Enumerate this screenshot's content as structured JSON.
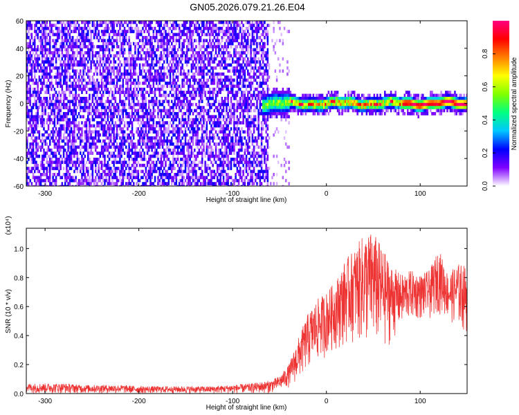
{
  "title": "GN05.2026.079.21.26.E04",
  "colorbar": {
    "label": "Normalized spectral amplitude",
    "ticks": [
      "0.0",
      "0.2",
      "0.4",
      "0.6",
      "0.8"
    ],
    "tick_values": [
      0.0,
      0.2,
      0.4,
      0.6,
      0.8
    ],
    "range": [
      0,
      1
    ],
    "gradient": [
      "#ffffff",
      "#8000ff",
      "#0000ff",
      "#00c8ff",
      "#00ff80",
      "#80ff00",
      "#ffff00",
      "#ff8000",
      "#ff0000",
      "#ff0080"
    ]
  },
  "chart_data": [
    {
      "type": "heatmap",
      "xlabel": "Height of straight line (km)",
      "ylabel": "Frequency (Hz)",
      "xlim": [
        -320,
        150
      ],
      "ylim": [
        -60,
        60
      ],
      "x_ticks": [
        -300,
        -200,
        -100,
        0,
        100
      ],
      "x_tick_labels": [
        "-300",
        "-200",
        "-100",
        "0",
        "100"
      ],
      "y_ticks": [
        -60,
        -40,
        -20,
        0,
        20,
        40,
        60
      ],
      "y_tick_labels": [
        "-60",
        "-40",
        "-20",
        "0",
        "20",
        "40",
        "60"
      ],
      "noise_region": {
        "x_range": [
          -320,
          -62
        ],
        "sparse_extension_to": -40,
        "amplitude": 0.2
      },
      "ridge": {
        "x_start": -70,
        "x_end": 150,
        "center_freq_hz": 1,
        "bandwidth_hz": [
          -5,
          6
        ],
        "peak_amplitude": 0.95
      }
    },
    {
      "type": "line",
      "xlabel": "Height of straight line (km)",
      "ylabel": "SNR (10 * v/v)",
      "y_scale_label": "(x10⁴)",
      "xlim": [
        -320,
        150
      ],
      "ylim": [
        0,
        1.14
      ],
      "x_ticks": [
        -300,
        -200,
        -100,
        0,
        100
      ],
      "x_tick_labels": [
        "-300",
        "-200",
        "-100",
        "0",
        "100"
      ],
      "y_ticks": [
        0.0,
        0.2,
        0.4,
        0.6,
        0.8,
        1.0
      ],
      "y_tick_labels": [
        "0.0",
        "0.2",
        "0.4",
        "0.6",
        "0.8",
        "1.0"
      ],
      "color": "#ee3333",
      "series": [
        {
          "x": [
            -320,
            -300,
            -280,
            -260,
            -240,
            -220,
            -200,
            -180,
            -160,
            -140,
            -120,
            -100,
            -80,
            -60,
            -50,
            -40,
            -30,
            -20,
            -10,
            0,
            10,
            20,
            30,
            40,
            50,
            60,
            70,
            80,
            90,
            100,
            110,
            120,
            130,
            140,
            150
          ],
          "low": [
            0.0,
            0.0,
            0.0,
            0.0,
            0.0,
            0.0,
            0.0,
            0.0,
            0.0,
            0.0,
            0.0,
            0.0,
            0.0,
            0.0,
            0.02,
            0.04,
            0.08,
            0.15,
            0.2,
            0.25,
            0.3,
            0.32,
            0.35,
            0.3,
            0.3,
            0.28,
            0.35,
            0.45,
            0.5,
            0.5,
            0.5,
            0.55,
            0.5,
            0.45,
            0.4
          ],
          "high": [
            0.07,
            0.07,
            0.07,
            0.06,
            0.06,
            0.06,
            0.05,
            0.05,
            0.05,
            0.05,
            0.05,
            0.06,
            0.07,
            0.09,
            0.12,
            0.2,
            0.38,
            0.55,
            0.65,
            0.7,
            0.78,
            0.92,
            1.0,
            1.1,
            1.12,
            1.0,
            0.88,
            0.82,
            0.85,
            0.82,
            0.85,
            1.0,
            0.82,
            0.9,
            0.88
          ]
        }
      ]
    }
  ]
}
